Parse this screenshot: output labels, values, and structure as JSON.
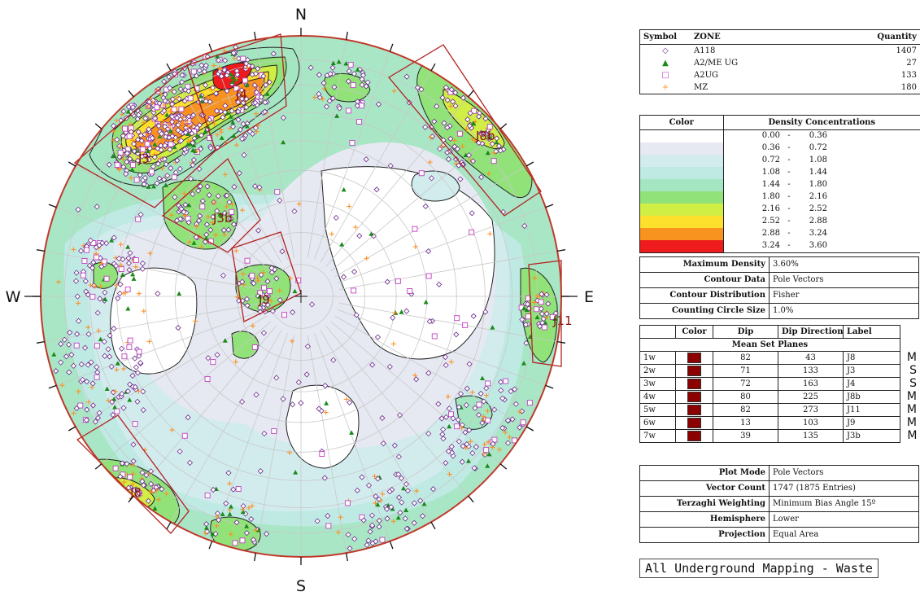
{
  "compass": {
    "n": "N",
    "e": "E",
    "s": "S",
    "w": "W"
  },
  "set_labels": [
    "J4",
    "J3",
    "J8b",
    "J3b",
    "J9",
    "J11",
    "J8"
  ],
  "symbol_legend": {
    "headers": {
      "symbol": "Symbol",
      "zone": "ZONE",
      "quantity": "Quantity"
    },
    "rows": [
      {
        "symbol": "◇",
        "zone": "A118",
        "quantity": "1407",
        "color": "#6a2a8a"
      },
      {
        "symbol": "▲",
        "zone": "A2/ME UG",
        "quantity": "27",
        "color": "#1a8a1a"
      },
      {
        "symbol": "□",
        "zone": "A2UG",
        "quantity": "133",
        "color": "#c040c0"
      },
      {
        "symbol": "+",
        "zone": "MZ",
        "quantity": "180",
        "color": "#ff8c1a"
      }
    ]
  },
  "density_legend": {
    "headers": {
      "color": "Color",
      "title": "Density Concentrations"
    },
    "rows": [
      {
        "low": "0.00",
        "sep": "-",
        "high": "0.36",
        "color": "#ffffff"
      },
      {
        "low": "0.36",
        "sep": "-",
        "high": "0.72",
        "color": "#e6e9f1"
      },
      {
        "low": "0.72",
        "sep": "-",
        "high": "1.08",
        "color": "#d2ecee"
      },
      {
        "low": "1.08",
        "sep": "-",
        "high": "1.44",
        "color": "#bfeae4"
      },
      {
        "low": "1.44",
        "sep": "-",
        "high": "1.80",
        "color": "#a4e6c2"
      },
      {
        "low": "1.80",
        "sep": "-",
        "high": "2.16",
        "color": "#92e27a"
      },
      {
        "low": "2.16",
        "sep": "-",
        "high": "2.52",
        "color": "#d1ee44"
      },
      {
        "low": "2.52",
        "sep": "-",
        "high": "2.88",
        "color": "#fce02b"
      },
      {
        "low": "2.88",
        "sep": "-",
        "high": "3.24",
        "color": "#f7931e"
      },
      {
        "low": "3.24",
        "sep": "-",
        "high": "3.60",
        "color": "#ee1c1c"
      }
    ]
  },
  "contour_info": [
    {
      "label": "Maximum Density",
      "value": "3.60%"
    },
    {
      "label": "Contour Data",
      "value": "Pole Vectors"
    },
    {
      "label": "Contour Distribution",
      "value": "Fisher"
    },
    {
      "label": "Counting Circle Size",
      "value": "1.0%"
    }
  ],
  "mean_sets": {
    "headers": {
      "color": "Color",
      "dip": "Dip",
      "dipdir": "Dip Direction",
      "label": "Label"
    },
    "section_title": "Mean Set Planes",
    "rows": [
      {
        "id": "1w",
        "dip": "82",
        "dipdir": "43",
        "label": "J8",
        "flag": "M"
      },
      {
        "id": "2w",
        "dip": "71",
        "dipdir": "133",
        "label": "J3",
        "flag": "S"
      },
      {
        "id": "3w",
        "dip": "72",
        "dipdir": "163",
        "label": "J4",
        "flag": "S"
      },
      {
        "id": "4w",
        "dip": "80",
        "dipdir": "225",
        "label": "J8b",
        "flag": "M"
      },
      {
        "id": "5w",
        "dip": "82",
        "dipdir": "273",
        "label": "J11",
        "flag": "M"
      },
      {
        "id": "6w",
        "dip": "13",
        "dipdir": "103",
        "label": "J9",
        "flag": "M"
      },
      {
        "id": "7w",
        "dip": "39",
        "dipdir": "135",
        "label": "J3b",
        "flag": "M"
      }
    ]
  },
  "plot_info": [
    {
      "label": "Plot Mode",
      "value": "Pole Vectors"
    },
    {
      "label": "Vector Count",
      "value": "1747 (1875 Entries)"
    },
    {
      "label": "Terzaghi Weighting",
      "value": "Minimum Bias Angle 15º"
    },
    {
      "label": "Hemisphere",
      "value": "Lower"
    },
    {
      "label": "Projection",
      "value": "Equal Area"
    }
  ],
  "caption": "All Underground Mapping - Waste",
  "colors": {
    "outline": "#c0392b",
    "set_box": "#b22222",
    "grid": "#c8c8c8"
  }
}
